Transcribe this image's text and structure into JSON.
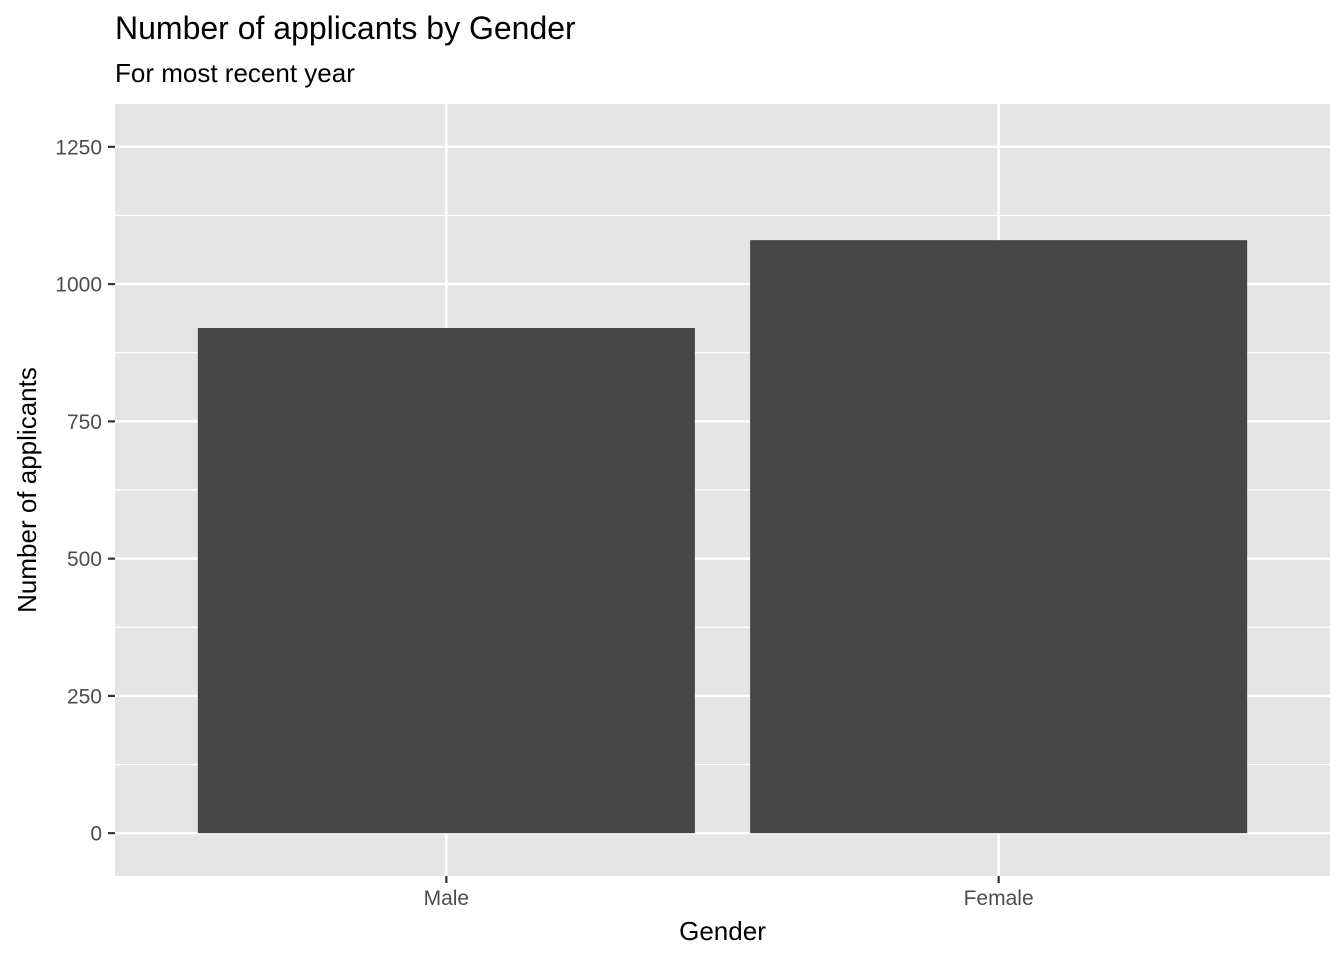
{
  "chart_data": {
    "type": "bar",
    "title": "Number of applicants by Gender",
    "subtitle": "For most recent year",
    "xlabel": "Gender",
    "ylabel": "Number of applicants",
    "categories": [
      "Male",
      "Female"
    ],
    "values": [
      920,
      1080
    ],
    "ylim": [
      -78,
      1328
    ],
    "yticks": [
      0,
      250,
      500,
      750,
      1000,
      1250
    ],
    "ytick_labels": [
      "0",
      "250",
      "500",
      "750",
      "1000",
      "1250"
    ],
    "grid": true,
    "colors": {
      "bar": "#474747",
      "panel": "#e5e5e5",
      "grid": "#ffffff",
      "tick": "#333333"
    }
  }
}
